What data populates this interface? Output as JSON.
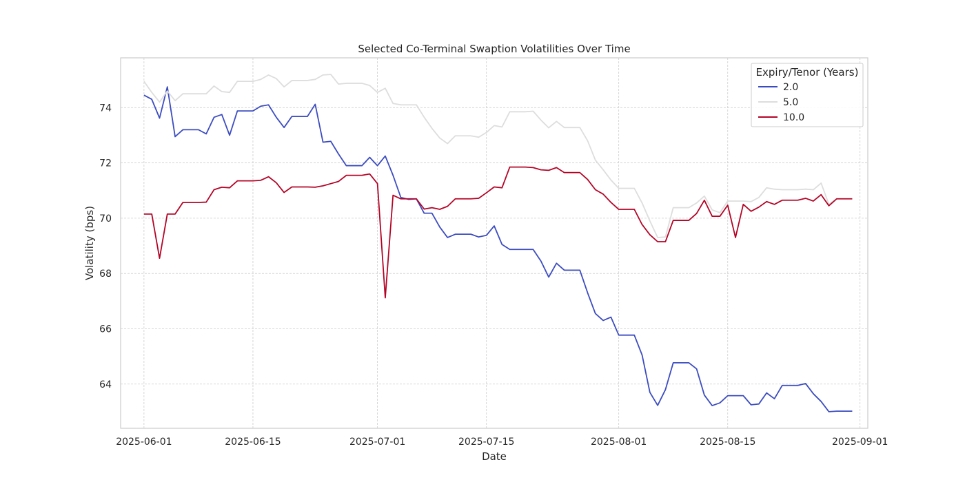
{
  "chart_data": {
    "type": "line",
    "title": "Selected Co-Terminal Swaption Volatilities Over Time",
    "xlabel": "Date",
    "ylabel": "Volatility (bps)",
    "x_start": "2025-06-01",
    "x_end": "2025-08-30",
    "xlim": [
      "2025-05-29",
      "2025-09-02"
    ],
    "ylim": [
      62.4,
      75.8
    ],
    "x_ticks": [
      "2025-06-01",
      "2025-06-15",
      "2025-07-01",
      "2025-07-15",
      "2025-08-01",
      "2025-08-15",
      "2025-09-01"
    ],
    "y_ticks": [
      64,
      66,
      68,
      70,
      72,
      74
    ],
    "grid": true,
    "legend": {
      "title": "Expiry/Tenor (Years)",
      "placement": "top-right"
    },
    "series": [
      {
        "name": "2.0",
        "color": "#3b4cc0",
        "values": [
          74.45,
          74.3,
          73.62,
          74.75,
          72.95,
          73.2,
          73.2,
          73.2,
          73.05,
          73.65,
          73.75,
          73.0,
          73.88,
          73.88,
          73.88,
          74.05,
          74.1,
          73.65,
          73.28,
          73.68,
          73.68,
          73.68,
          74.12,
          72.75,
          72.78,
          72.32,
          71.9,
          71.9,
          71.9,
          72.2,
          71.9,
          72.25,
          71.55,
          70.75,
          70.68,
          70.7,
          70.18,
          70.18,
          69.68,
          69.3,
          69.42,
          69.42,
          69.42,
          69.32,
          69.38,
          69.72,
          69.05,
          68.87,
          68.87,
          68.87,
          68.87,
          68.45,
          67.87,
          68.37,
          68.12,
          68.12,
          68.12,
          67.3,
          66.55,
          66.3,
          66.42,
          65.77,
          65.77,
          65.77,
          65.05,
          63.7,
          63.23,
          63.8,
          64.77,
          64.77,
          64.77,
          64.55,
          63.6,
          63.22,
          63.32,
          63.58,
          63.58,
          63.58,
          63.25,
          63.28,
          63.68,
          63.47,
          63.95,
          63.95,
          63.95,
          64.02,
          63.65,
          63.37,
          63.0,
          63.02,
          63.02,
          63.02
        ]
      },
      {
        "name": "5.0",
        "color": "#dddddd",
        "values": [
          74.95,
          74.55,
          74.2,
          74.6,
          74.25,
          74.5,
          74.5,
          74.5,
          74.5,
          74.78,
          74.58,
          74.55,
          74.95,
          74.95,
          74.95,
          75.02,
          75.18,
          75.05,
          74.75,
          74.98,
          74.98,
          74.98,
          75.02,
          75.18,
          75.2,
          74.85,
          74.88,
          74.88,
          74.88,
          74.8,
          74.55,
          74.7,
          74.15,
          74.1,
          74.1,
          74.1,
          73.65,
          73.25,
          72.9,
          72.7,
          72.98,
          72.98,
          72.98,
          72.93,
          73.1,
          73.35,
          73.3,
          73.85,
          73.85,
          73.85,
          73.87,
          73.55,
          73.27,
          73.5,
          73.28,
          73.28,
          73.28,
          72.8,
          72.1,
          71.75,
          71.38,
          71.08,
          71.08,
          71.08,
          70.55,
          69.9,
          69.3,
          69.32,
          70.38,
          70.38,
          70.38,
          70.55,
          70.8,
          70.3,
          70.2,
          70.62,
          70.62,
          70.62,
          70.6,
          70.75,
          71.1,
          71.05,
          71.03,
          71.03,
          71.03,
          71.05,
          71.03,
          71.27,
          70.5,
          70.7,
          70.7,
          70.7
        ]
      },
      {
        "name": "10.0",
        "color": "#b40426",
        "values": [
          70.15,
          70.15,
          68.55,
          70.15,
          70.15,
          70.57,
          70.57,
          70.57,
          70.58,
          71.03,
          71.12,
          71.1,
          71.35,
          71.35,
          71.35,
          71.37,
          71.5,
          71.28,
          70.93,
          71.13,
          71.13,
          71.13,
          71.12,
          71.17,
          71.25,
          71.33,
          71.55,
          71.55,
          71.55,
          71.6,
          71.25,
          67.12,
          70.83,
          70.7,
          70.7,
          70.7,
          70.33,
          70.38,
          70.32,
          70.43,
          70.7,
          70.7,
          70.7,
          70.72,
          70.92,
          71.13,
          71.1,
          71.85,
          71.85,
          71.85,
          71.83,
          71.75,
          71.73,
          71.83,
          71.65,
          71.65,
          71.65,
          71.4,
          71.03,
          70.87,
          70.57,
          70.32,
          70.32,
          70.32,
          69.77,
          69.4,
          69.15,
          69.15,
          69.92,
          69.92,
          69.92,
          70.17,
          70.65,
          70.07,
          70.07,
          70.47,
          69.3,
          70.5,
          70.25,
          70.4,
          70.6,
          70.5,
          70.65,
          70.65,
          70.65,
          70.72,
          70.62,
          70.85,
          70.45,
          70.7,
          70.7,
          70.7
        ]
      }
    ]
  }
}
